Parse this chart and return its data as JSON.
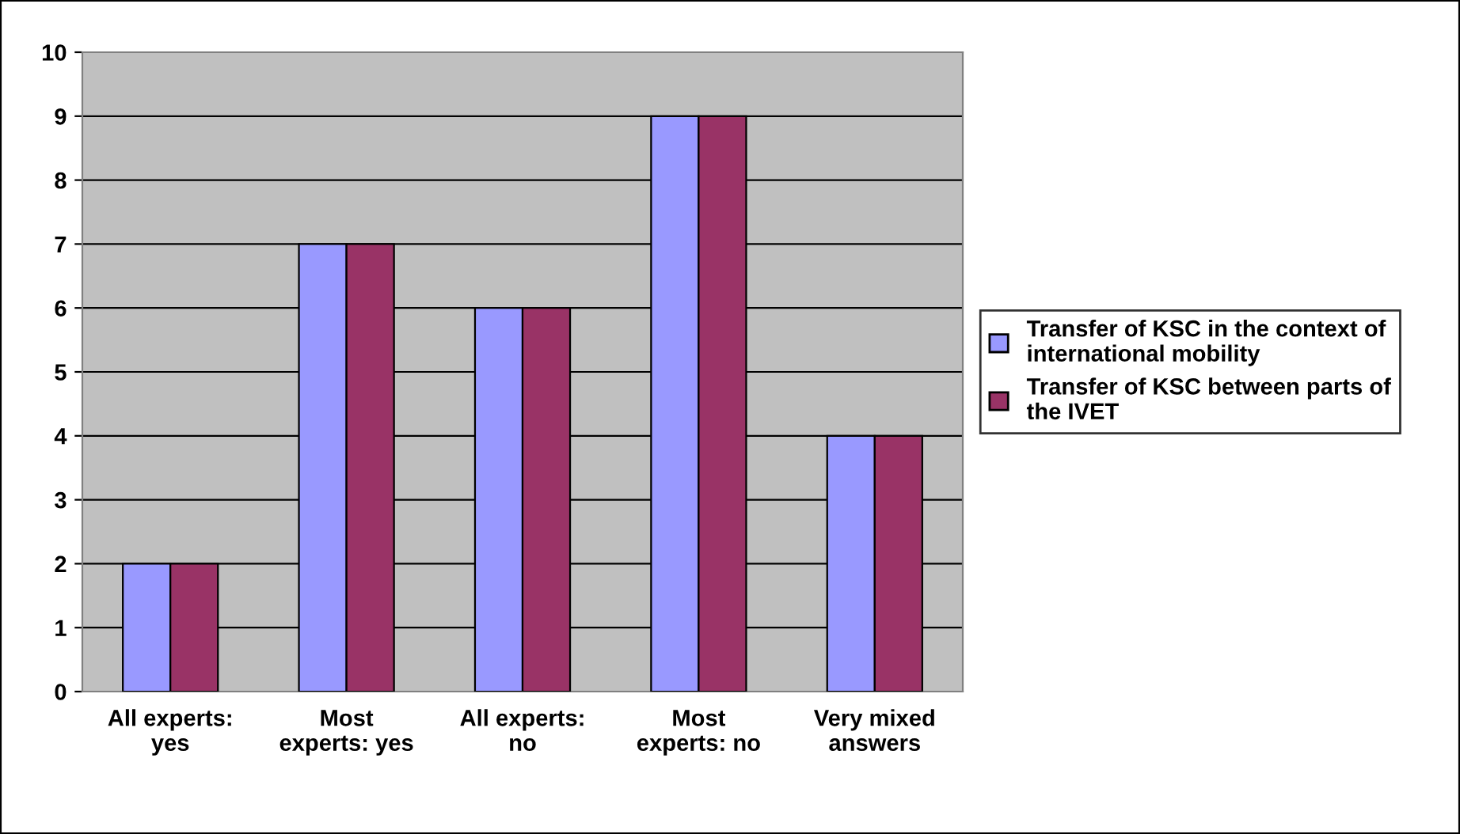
{
  "chart_data": {
    "type": "bar",
    "categories": [
      "All experts:\nyes",
      "Most\nexperts: yes",
      "All experts:\nno",
      "Most\nexperts: no",
      "Very mixed\nanswers"
    ],
    "series": [
      {
        "name": "Transfer of KSC in the context of\ninternational mobility",
        "color": "#9999ff",
        "values": [
          2,
          7,
          6,
          9,
          4
        ]
      },
      {
        "name": "Transfer of KSC between parts of\nthe IVET",
        "color": "#993366",
        "values": [
          2,
          7,
          6,
          9,
          4
        ]
      }
    ],
    "ylim": [
      0,
      10
    ],
    "yticks": [
      0,
      1,
      2,
      3,
      4,
      5,
      6,
      7,
      8,
      9,
      10
    ],
    "grid": "y",
    "legend": "right"
  }
}
